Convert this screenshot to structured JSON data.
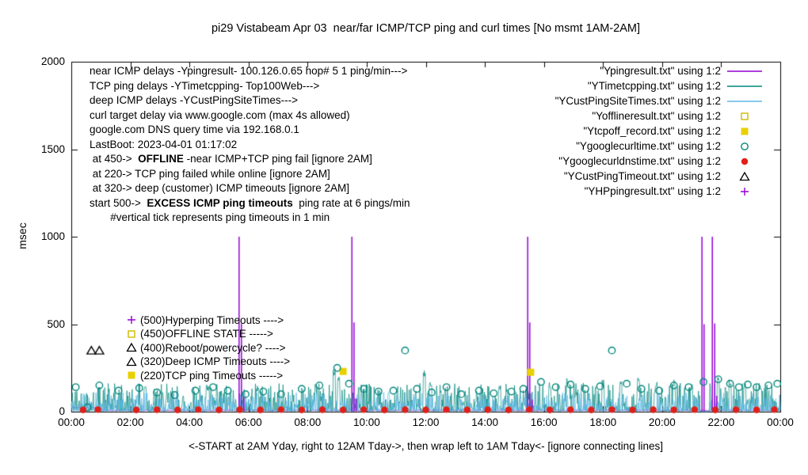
{
  "chart_data": {
    "type": "line",
    "title": "pi29 Vistabeam Apr 03  near/far ICMP/TCP ping and curl times [No msmt 1AM-2AM]",
    "ylabel": "msec",
    "xlabel": "<-START at 2AM Yday, right to 12AM Tday->, then wrap left to 1AM Tday<- [ignore connecting lines]",
    "ylim": [
      0,
      2000
    ],
    "xlim": [
      0,
      24
    ],
    "grid": false,
    "legend_position": "top-right",
    "y_ticks": [
      0,
      500,
      1000,
      1500,
      2000
    ],
    "x_ticks": [
      "00:00",
      "02:00",
      "04:00",
      "06:00",
      "08:00",
      "10:00",
      "12:00",
      "14:00",
      "16:00",
      "18:00",
      "20:00",
      "22:00",
      "00:00"
    ],
    "series": [
      {
        "name": "Ypingresult",
        "render": "impulses",
        "color": "#9400d3",
        "baseline": {
          "step_at": 1.05,
          "before": 20,
          "after": 5,
          "jitter": 5,
          "seed": 5
        },
        "spikes": [
          [
            5.68,
            1000
          ],
          [
            5.76,
            505
          ],
          [
            5.84,
            80
          ],
          [
            9.5,
            1000
          ],
          [
            9.57,
            510
          ],
          [
            9.64,
            75
          ],
          [
            15.45,
            1000
          ],
          [
            15.52,
            510
          ],
          [
            15.6,
            70
          ],
          [
            21.35,
            1000
          ],
          [
            21.42,
            500
          ],
          [
            21.7,
            1000
          ],
          [
            21.78,
            505
          ],
          [
            21.85,
            90
          ]
        ]
      },
      {
        "name": "YTimetcpping",
        "render": "noise",
        "color": "#00877c",
        "noise": {
          "seed": 42,
          "base": 3,
          "amp": 160,
          "pow": 2.6
        },
        "bursts": [
          [
            2.5,
            160
          ],
          [
            4.6,
            150
          ],
          [
            6.3,
            155
          ],
          [
            8.9,
            245
          ],
          [
            9.05,
            200
          ],
          [
            11.95,
            235
          ],
          [
            12.15,
            185
          ],
          [
            14.5,
            150
          ],
          [
            16.2,
            175
          ],
          [
            16.8,
            195
          ],
          [
            17.3,
            165
          ],
          [
            18.0,
            185
          ],
          [
            18.6,
            175
          ],
          [
            19.2,
            205
          ],
          [
            19.8,
            175
          ],
          [
            20.4,
            195
          ],
          [
            21.0,
            165
          ],
          [
            21.9,
            215
          ],
          [
            22.3,
            185
          ],
          [
            22.8,
            175
          ],
          [
            23.3,
            165
          ]
        ],
        "gaps": [
          [
            21.28,
            21.6
          ]
        ]
      },
      {
        "name": "YCustPingSiteTimes",
        "render": "noise",
        "color": "#5bb8e8",
        "noise": {
          "seed": 99,
          "base": 2,
          "amp": 110,
          "pow": 3.2
        },
        "bursts": [],
        "gaps": [
          [
            21.28,
            21.6
          ]
        ]
      },
      {
        "name": "Yofflineresult",
        "render": "points",
        "marker": "square-open",
        "color": "#cdb900",
        "points": []
      },
      {
        "name": "Ytcpoff_record",
        "render": "points",
        "marker": "square-filled",
        "color": "#e8d000",
        "points": [
          [
            9.2,
            230
          ],
          [
            15.55,
            225
          ]
        ]
      },
      {
        "name": "Ygooglecurltime",
        "render": "points",
        "marker": "circle-open",
        "color": "#00877c",
        "points": [
          [
            0.15,
            140
          ],
          [
            0.55,
            25
          ],
          [
            0.95,
            150
          ],
          [
            1.6,
            120
          ],
          [
            2.3,
            135
          ],
          [
            2.9,
            110
          ],
          [
            3.5,
            95
          ],
          [
            4.2,
            120
          ],
          [
            4.8,
            140
          ],
          [
            5.3,
            120
          ],
          [
            5.9,
            100
          ],
          [
            6.5,
            115
          ],
          [
            7.1,
            100
          ],
          [
            7.8,
            130
          ],
          [
            8.4,
            150
          ],
          [
            9.0,
            250
          ],
          [
            9.4,
            160
          ],
          [
            9.9,
            130
          ],
          [
            10.4,
            115
          ],
          [
            10.9,
            120
          ],
          [
            11.3,
            350
          ],
          [
            11.7,
            130
          ],
          [
            12.2,
            110
          ],
          [
            12.7,
            140
          ],
          [
            13.2,
            100
          ],
          [
            13.8,
            120
          ],
          [
            14.3,
            105
          ],
          [
            14.9,
            115
          ],
          [
            15.3,
            130
          ],
          [
            15.9,
            170
          ],
          [
            16.4,
            140
          ],
          [
            16.9,
            155
          ],
          [
            17.4,
            130
          ],
          [
            17.9,
            145
          ],
          [
            18.3,
            350
          ],
          [
            18.8,
            160
          ],
          [
            19.3,
            130
          ],
          [
            19.9,
            120
          ],
          [
            20.4,
            150
          ],
          [
            20.9,
            140
          ],
          [
            21.4,
            170
          ],
          [
            21.9,
            185
          ],
          [
            22.3,
            160
          ],
          [
            22.6,
            140
          ],
          [
            22.9,
            155
          ],
          [
            23.2,
            140
          ],
          [
            23.6,
            150
          ],
          [
            23.9,
            160
          ]
        ]
      },
      {
        "name": "Ygooglecurldnstime",
        "render": "points",
        "marker": "circle-filled",
        "color": "#e0201a",
        "points": [
          [
            0.4,
            10
          ],
          [
            0.9,
            12
          ],
          [
            2.2,
            10
          ],
          [
            2.9,
            11
          ],
          [
            3.6,
            10
          ],
          [
            4.3,
            12
          ],
          [
            5.0,
            10
          ],
          [
            5.7,
            11
          ],
          [
            6.4,
            10
          ],
          [
            7.1,
            12
          ],
          [
            7.8,
            10
          ],
          [
            8.5,
            11
          ],
          [
            9.2,
            10
          ],
          [
            9.9,
            12
          ],
          [
            10.6,
            10
          ],
          [
            11.3,
            11
          ],
          [
            12.0,
            10
          ],
          [
            12.7,
            12
          ],
          [
            13.4,
            10
          ],
          [
            14.1,
            11
          ],
          [
            14.8,
            10
          ],
          [
            15.5,
            12
          ],
          [
            16.2,
            10
          ],
          [
            16.9,
            11
          ],
          [
            17.6,
            10
          ],
          [
            18.3,
            12
          ],
          [
            19.0,
            10
          ],
          [
            19.7,
            11
          ],
          [
            20.4,
            10
          ],
          [
            21.1,
            12
          ],
          [
            21.8,
            10
          ],
          [
            22.5,
            11
          ],
          [
            23.2,
            10
          ],
          [
            23.8,
            12
          ]
        ]
      },
      {
        "name": "YCustPingTimeout",
        "render": "points",
        "marker": "triangle-open",
        "color": "#000000",
        "points": [
          [
            0.68,
            350
          ],
          [
            0.95,
            350
          ]
        ]
      },
      {
        "name": "YHPpingresult",
        "render": "points",
        "marker": "plus",
        "color": "#9400d3",
        "points": []
      }
    ],
    "legend": [
      {
        "label": "\"Ypingresult.txt\" using 1:2",
        "series": "Ypingresult"
      },
      {
        "label": "\"YTimetcpping.txt\" using 1:2",
        "series": "YTimetcpping"
      },
      {
        "label": "\"YCustPingSiteTimes.txt\" using 1:2",
        "series": "YCustPingSiteTimes"
      },
      {
        "label": "\"Yofflineresult.txt\" using 1:2",
        "series": "Yofflineresult"
      },
      {
        "label": "\"Ytcpoff_record.txt\" using 1:2",
        "series": "Ytcpoff_record"
      },
      {
        "label": "\"Ygooglecurltime.txt\" using 1:2",
        "series": "Ygooglecurltime"
      },
      {
        "label": "\"Ygooglecurldnstime.txt\" using 1:2",
        "series": "Ygooglecurldnstime"
      },
      {
        "label": "\"YCustPingTimeout.txt\" using 1:2",
        "series": "YCustPingTimeout"
      },
      {
        "label": "\"YHPpingresult.txt\" using 1:2",
        "series": "YHPpingresult"
      }
    ]
  },
  "annotations": {
    "info_lines": [
      {
        "pre": "near ICMP delays -Ypingresult- 100.126.0.65 hop# 5 1 ping/min--->"
      },
      {
        "pre": "TCP ping delays -YTimetcpping- Top100Web--->"
      },
      {
        "pre": "deep ICMP delays -YCustPingSiteTimes--->"
      },
      {
        "pre": "curl target delay via www.google.com (max 4s allowed)"
      },
      {
        "pre": "google.com DNS query time via 192.168.0.1"
      },
      {
        "pre": "LastBoot: 2023-04-01 01:17:02"
      },
      {
        "pre": " at 450->  ",
        "bold": "OFFLINE",
        "post": " -near ICMP+TCP ping fail [ignore 2AM]"
      },
      {
        "pre": " at 220-> TCP ping failed while online [ignore 2AM]"
      },
      {
        "pre": " at 320-> deep (customer) ICMP timeouts [ignore 2AM]"
      },
      {
        "pre": "start 500->  ",
        "bold": "EXCESS ICMP ping timeouts",
        "post": "  ping rate at 6 pings/min"
      },
      {
        "pre": "       #vertical tick represents ping timeouts in 1 min"
      }
    ],
    "level_labels": [
      {
        "text": "(500)Hyperping Timeouts ---->",
        "series": "YHPpingresult"
      },
      {
        "text": "(450)OFFLINE STATE ----->",
        "series": "Yofflineresult"
      },
      {
        "text": "(400)Reboot/powercycle? ---->",
        "series": "YCustPingTimeout"
      },
      {
        "text": "(320)Deep ICMP Timeouts ---->",
        "series": "YCustPingTimeout"
      },
      {
        "text": "(220)TCP ping Timeouts ----->",
        "series": "Ytcpoff_record"
      }
    ]
  }
}
